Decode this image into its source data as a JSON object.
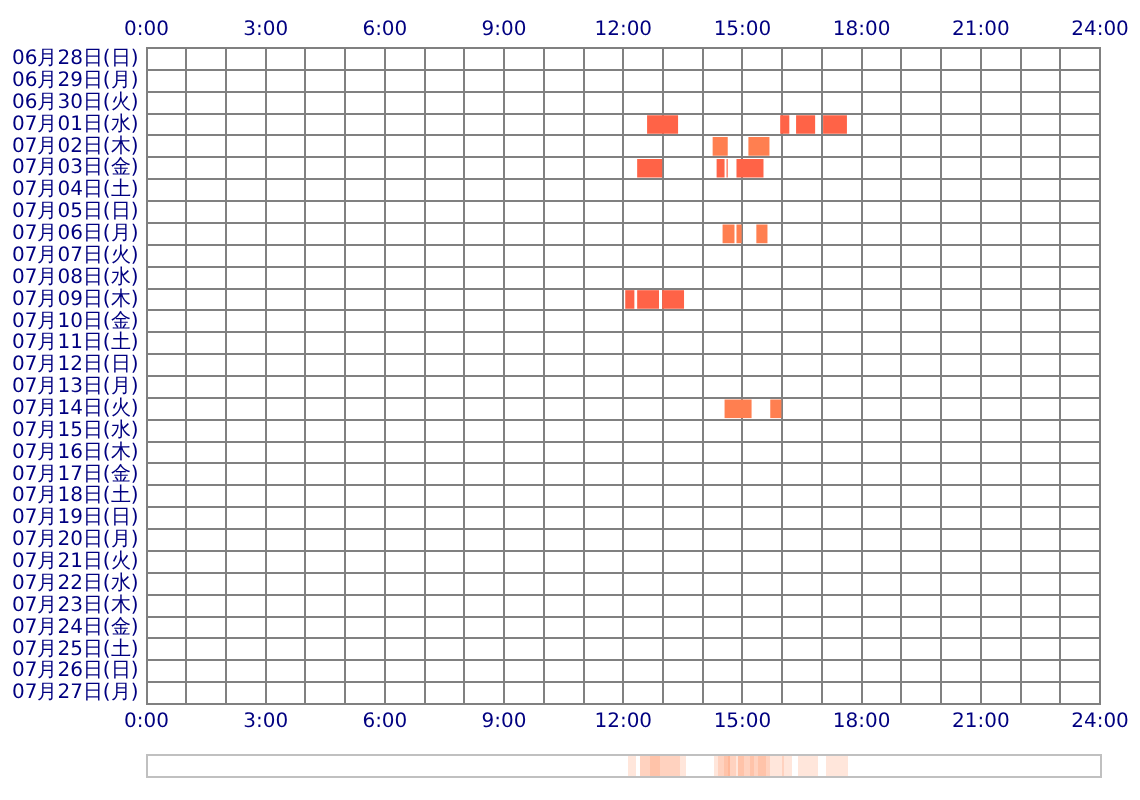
{
  "chart_data": {
    "type": "bar",
    "orientation": "horizontal",
    "grid": true,
    "legend": false,
    "categories": [
      "06月28日(日)",
      "06月29日(月)",
      "06月30日(火)",
      "07月01日(水)",
      "07月02日(木)",
      "07月03日(金)",
      "07月04日(土)",
      "07月05日(日)",
      "07月06日(月)",
      "07月07日(火)",
      "07月08日(水)",
      "07月09日(木)",
      "07月10日(金)",
      "07月11日(土)",
      "07月12日(日)",
      "07月13日(月)",
      "07月14日(火)",
      "07月15日(水)",
      "07月16日(木)",
      "07月17日(金)",
      "07月18日(土)",
      "07月19日(日)",
      "07月20日(月)",
      "07月21日(火)",
      "07月22日(水)",
      "07月23日(木)",
      "07月24日(金)",
      "07月25日(土)",
      "07月26日(日)",
      "07月27日(月)"
    ],
    "series": [
      {
        "colors": [
          null,
          null,
          null,
          "#ff6347",
          "#ff7f50",
          "#ff6347",
          null,
          null,
          "#ff7f50",
          null,
          null,
          "#ff6347",
          null,
          null,
          null,
          null,
          "#ff7f50",
          null,
          null,
          null,
          null,
          null,
          null,
          null,
          null,
          null,
          null,
          null,
          null,
          null
        ],
        "base": [
          null,
          null,
          null,
          12.6,
          14.25,
          12.35,
          null,
          null,
          14.5,
          null,
          null,
          12.05,
          null,
          null,
          null,
          null,
          14.55,
          null,
          null,
          null,
          null,
          null,
          null,
          null,
          null,
          null,
          null,
          null,
          null,
          null
        ],
        "values": [
          null,
          null,
          null,
          0.78,
          0.38,
          0.63,
          null,
          null,
          0.3,
          null,
          null,
          0.23,
          null,
          null,
          null,
          null,
          0.68,
          null,
          null,
          null,
          null,
          null,
          null,
          null,
          null,
          null,
          null,
          null,
          null,
          null
        ]
      },
      {
        "colors": [
          null,
          null,
          null,
          "#ff6347",
          "#ff7f50",
          "#ff6347",
          null,
          null,
          "#ff7f50",
          null,
          null,
          "#ff6347",
          null,
          null,
          null,
          null,
          "#ff7f50",
          null,
          null,
          null,
          null,
          null,
          null,
          null,
          null,
          null,
          null,
          null,
          null,
          null
        ],
        "base": [
          null,
          null,
          null,
          15.95,
          15.15,
          14.35,
          null,
          null,
          14.85,
          null,
          null,
          12.35,
          null,
          null,
          null,
          null,
          15.7,
          null,
          null,
          null,
          null,
          null,
          null,
          null,
          null,
          null,
          null,
          null,
          null,
          null
        ],
        "values": [
          null,
          null,
          null,
          0.23,
          0.53,
          0.2,
          null,
          null,
          0.13,
          null,
          null,
          0.55,
          null,
          null,
          null,
          null,
          0.28,
          null,
          null,
          null,
          null,
          null,
          null,
          null,
          null,
          null,
          null,
          null,
          null,
          null
        ]
      },
      {
        "colors": [
          null,
          null,
          null,
          "#ff6347",
          null,
          "#ff6347",
          null,
          null,
          "#ff7f50",
          null,
          null,
          "#ff6347",
          null,
          null,
          null,
          null,
          null,
          null,
          null,
          null,
          null,
          null,
          null,
          null,
          null,
          null,
          null,
          null,
          null,
          null
        ],
        "base": [
          null,
          null,
          null,
          16.35,
          null,
          14.6,
          null,
          null,
          15.35,
          null,
          null,
          12.98,
          null,
          null,
          null,
          null,
          null,
          null,
          null,
          null,
          null,
          null,
          null,
          null,
          null,
          null,
          null,
          null,
          null,
          null
        ],
        "values": [
          null,
          null,
          null,
          0.48,
          null,
          0.03,
          null,
          null,
          0.28,
          null,
          null,
          0.55,
          null,
          null,
          null,
          null,
          null,
          null,
          null,
          null,
          null,
          null,
          null,
          null,
          null,
          null,
          null,
          null,
          null,
          null
        ]
      },
      {
        "colors": [
          null,
          null,
          null,
          "#ff6347",
          null,
          "#ff6347",
          null,
          null,
          null,
          null,
          null,
          null,
          null,
          null,
          null,
          null,
          null,
          null,
          null,
          null,
          null,
          null,
          null,
          null,
          null,
          null,
          null,
          null,
          null,
          null
        ],
        "base": [
          null,
          null,
          null,
          17.03,
          null,
          14.85,
          null,
          null,
          null,
          null,
          null,
          null,
          null,
          null,
          null,
          null,
          null,
          null,
          null,
          null,
          null,
          null,
          null,
          null,
          null,
          null,
          null,
          null,
          null,
          null
        ],
        "values": [
          null,
          null,
          null,
          0.6,
          null,
          0.68,
          null,
          null,
          null,
          null,
          null,
          null,
          null,
          null,
          null,
          null,
          null,
          null,
          null,
          null,
          null,
          null,
          null,
          null,
          null,
          null,
          null,
          null,
          null,
          null
        ]
      }
    ],
    "xlim": [
      0,
      24
    ],
    "xticks": [
      {
        "value": 0,
        "label": "0:00"
      },
      {
        "value": 1,
        "label": null
      },
      {
        "value": 2,
        "label": null
      },
      {
        "value": 3,
        "label": "3:00"
      },
      {
        "value": 4,
        "label": null
      },
      {
        "value": 5,
        "label": null
      },
      {
        "value": 6,
        "label": "6:00"
      },
      {
        "value": 7,
        "label": null
      },
      {
        "value": 8,
        "label": null
      },
      {
        "value": 9,
        "label": "9:00"
      },
      {
        "value": 10,
        "label": null
      },
      {
        "value": 11,
        "label": null
      },
      {
        "value": 12,
        "label": "12:00"
      },
      {
        "value": 13,
        "label": null
      },
      {
        "value": 14,
        "label": null
      },
      {
        "value": 15,
        "label": "15:00"
      },
      {
        "value": 16,
        "label": null
      },
      {
        "value": 17,
        "label": null
      },
      {
        "value": 18,
        "label": "18:00"
      },
      {
        "value": 19,
        "label": null
      },
      {
        "value": 20,
        "label": null
      },
      {
        "value": 21,
        "label": "21:00"
      },
      {
        "value": 22,
        "label": null
      },
      {
        "value": 23,
        "label": null
      },
      {
        "value": 24,
        "label": "24:00"
      }
    ],
    "x2lim": [
      0,
      24
    ],
    "x2ticks": [
      {
        "value": 0,
        "label": "0:00"
      },
      {
        "value": 1,
        "label": null
      },
      {
        "value": 2,
        "label": null
      },
      {
        "value": 3,
        "label": "3:00"
      },
      {
        "value": 4,
        "label": null
      },
      {
        "value": 5,
        "label": null
      },
      {
        "value": 6,
        "label": "6:00"
      },
      {
        "value": 7,
        "label": null
      },
      {
        "value": 8,
        "label": null
      },
      {
        "value": 9,
        "label": "9:00"
      },
      {
        "value": 10,
        "label": null
      },
      {
        "value": 11,
        "label": null
      },
      {
        "value": 12,
        "label": "12:00"
      },
      {
        "value": 13,
        "label": null
      },
      {
        "value": 14,
        "label": null
      },
      {
        "value": 15,
        "label": "15:00"
      },
      {
        "value": 16,
        "label": null
      },
      {
        "value": 17,
        "label": null
      },
      {
        "value": 18,
        "label": "18:00"
      },
      {
        "value": 19,
        "label": null
      },
      {
        "value": 20,
        "label": null
      },
      {
        "value": 21,
        "label": "21:00"
      },
      {
        "value": 22,
        "label": null
      },
      {
        "value": 23,
        "label": null
      },
      {
        "value": 24,
        "label": "24:00"
      }
    ]
  }
}
